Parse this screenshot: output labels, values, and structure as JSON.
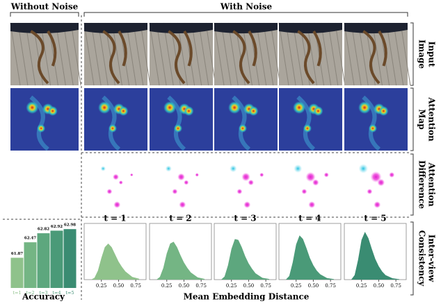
{
  "header": {
    "left": "Without Noise",
    "right": "With Noise"
  },
  "row_labels": [
    [
      "Input",
      "Image"
    ],
    [
      "Attention",
      "Map"
    ],
    [
      "Attention",
      "Difference"
    ],
    [
      "Inter-view",
      "Consistency"
    ]
  ],
  "chart_data": [
    {
      "type": "bar",
      "xlabel": "Accuracy",
      "categories": [
        "t=1",
        "t=2",
        "t=3",
        "t=4",
        "t=5"
      ],
      "values": [
        61.87,
        62.47,
        62.82,
        62.92,
        62.98
      ],
      "colors": [
        "#8fc28b",
        "#74b584",
        "#5da77e",
        "#4a9a78",
        "#3a8c72"
      ],
      "ylim": [
        60.7,
        63.2
      ]
    },
    {
      "type": "area",
      "title": "t = 1",
      "x": [
        0.1,
        0.15,
        0.2,
        0.25,
        0.3,
        0.35,
        0.4,
        0.45,
        0.5,
        0.55,
        0.6,
        0.7,
        0.8
      ],
      "values": [
        0,
        0.2,
        1,
        2.4,
        3.6,
        4,
        3.6,
        2.8,
        2,
        1.4,
        0.9,
        0.3,
        0.1
      ],
      "color": "#8fc28b",
      "xlim": [
        0,
        0.9
      ],
      "ylim": [
        0,
        6
      ],
      "xticks": [
        0.25,
        {
          "value": 0.5,
          "label": "0.50"
        },
        0.75
      ]
    },
    {
      "type": "area",
      "title": "t = 2",
      "x": [
        0.1,
        0.15,
        0.2,
        0.25,
        0.3,
        0.35,
        0.4,
        0.45,
        0.5,
        0.55,
        0.6,
        0.7,
        0.8
      ],
      "values": [
        0,
        0.3,
        1.3,
        2.9,
        4,
        4.2,
        3.6,
        2.7,
        1.9,
        1.3,
        0.8,
        0.25,
        0.08
      ],
      "color": "#74b584",
      "xlim": [
        0,
        0.9
      ],
      "ylim": [
        0,
        6
      ],
      "xticks": [
        0.25,
        {
          "value": 0.5,
          "label": "0.50"
        },
        0.75
      ]
    },
    {
      "type": "area",
      "title": "t = 3",
      "x": [
        0.1,
        0.15,
        0.2,
        0.25,
        0.3,
        0.35,
        0.4,
        0.45,
        0.5,
        0.55,
        0.6,
        0.7,
        0.8
      ],
      "values": [
        0,
        0.35,
        1.6,
        3.4,
        4.5,
        4.4,
        3.6,
        2.6,
        1.8,
        1.2,
        0.7,
        0.2,
        0.07
      ],
      "color": "#5da77e",
      "xlim": [
        0,
        0.9
      ],
      "ylim": [
        0,
        6
      ],
      "xticks": [
        0.25,
        {
          "value": 0.5,
          "label": "0.50"
        },
        0.75
      ]
    },
    {
      "type": "area",
      "title": "t = 4",
      "x": [
        0.1,
        0.15,
        0.2,
        0.25,
        0.3,
        0.35,
        0.4,
        0.45,
        0.5,
        0.55,
        0.6,
        0.7,
        0.8
      ],
      "values": [
        0,
        0.4,
        1.9,
        3.9,
        4.9,
        4.5,
        3.5,
        2.4,
        1.6,
        1,
        0.6,
        0.17,
        0.06
      ],
      "color": "#4a9a78",
      "xlim": [
        0,
        0.9
      ],
      "ylim": [
        0,
        6
      ],
      "xticks": [
        0.25,
        {
          "value": 0.5,
          "label": "0.50"
        },
        0.75
      ]
    },
    {
      "type": "area",
      "title": "t = 5",
      "x": [
        0.1,
        0.15,
        0.2,
        0.25,
        0.3,
        0.35,
        0.4,
        0.45,
        0.5,
        0.55,
        0.6,
        0.7,
        0.8
      ],
      "values": [
        0,
        0.5,
        2.2,
        4.4,
        5.3,
        4.6,
        3.4,
        2.3,
        1.5,
        0.9,
        0.5,
        0.15,
        0.05
      ],
      "color": "#3a8c72",
      "xlim": [
        0,
        0.9
      ],
      "ylim": [
        0,
        6
      ],
      "xticks": [
        0.25,
        {
          "value": 0.5,
          "label": "0.50"
        },
        0.75
      ]
    }
  ],
  "xlabel": "Mean Embedding Distance"
}
